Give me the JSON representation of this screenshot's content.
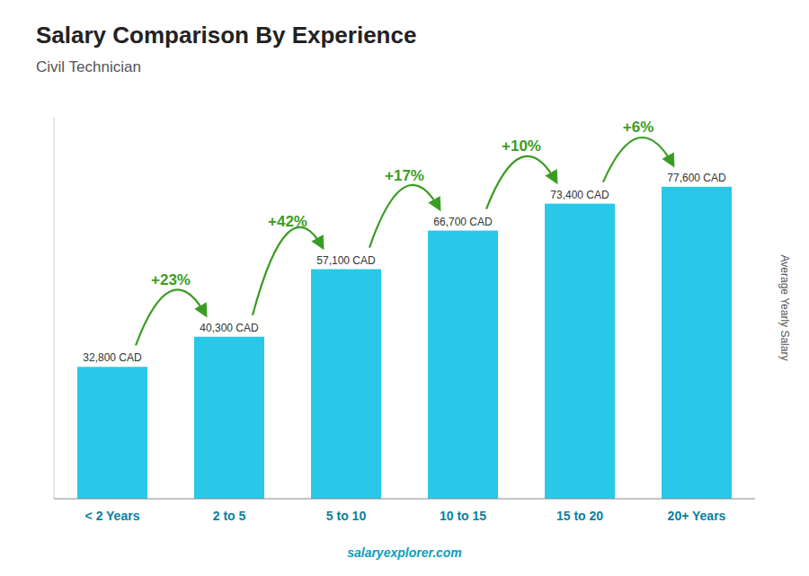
{
  "chart_data": {
    "type": "bar",
    "title": "Salary Comparison By Experience",
    "subtitle": "Civil Technician",
    "y_label": "Average Yearly Salary",
    "categories": [
      "< 2 Years",
      "2 to 5",
      "5 to 10",
      "10 to 15",
      "15 to 20",
      "20+ Years"
    ],
    "values": [
      32800,
      40300,
      57100,
      66700,
      73400,
      77600
    ],
    "value_labels": [
      "32,800 CAD",
      "40,300 CAD",
      "57,100 CAD",
      "66,700 CAD",
      "73,400 CAD",
      "77,600 CAD"
    ],
    "data_labels": true,
    "annotations": [
      "+23%",
      "+42%",
      "+17%",
      "+10%",
      "+6%"
    ],
    "footer": "salaryexplorer.com",
    "color": "#29c8e8",
    "ylim": [
      0,
      95000
    ],
    "tick_labels": "x",
    "grid": false
  }
}
